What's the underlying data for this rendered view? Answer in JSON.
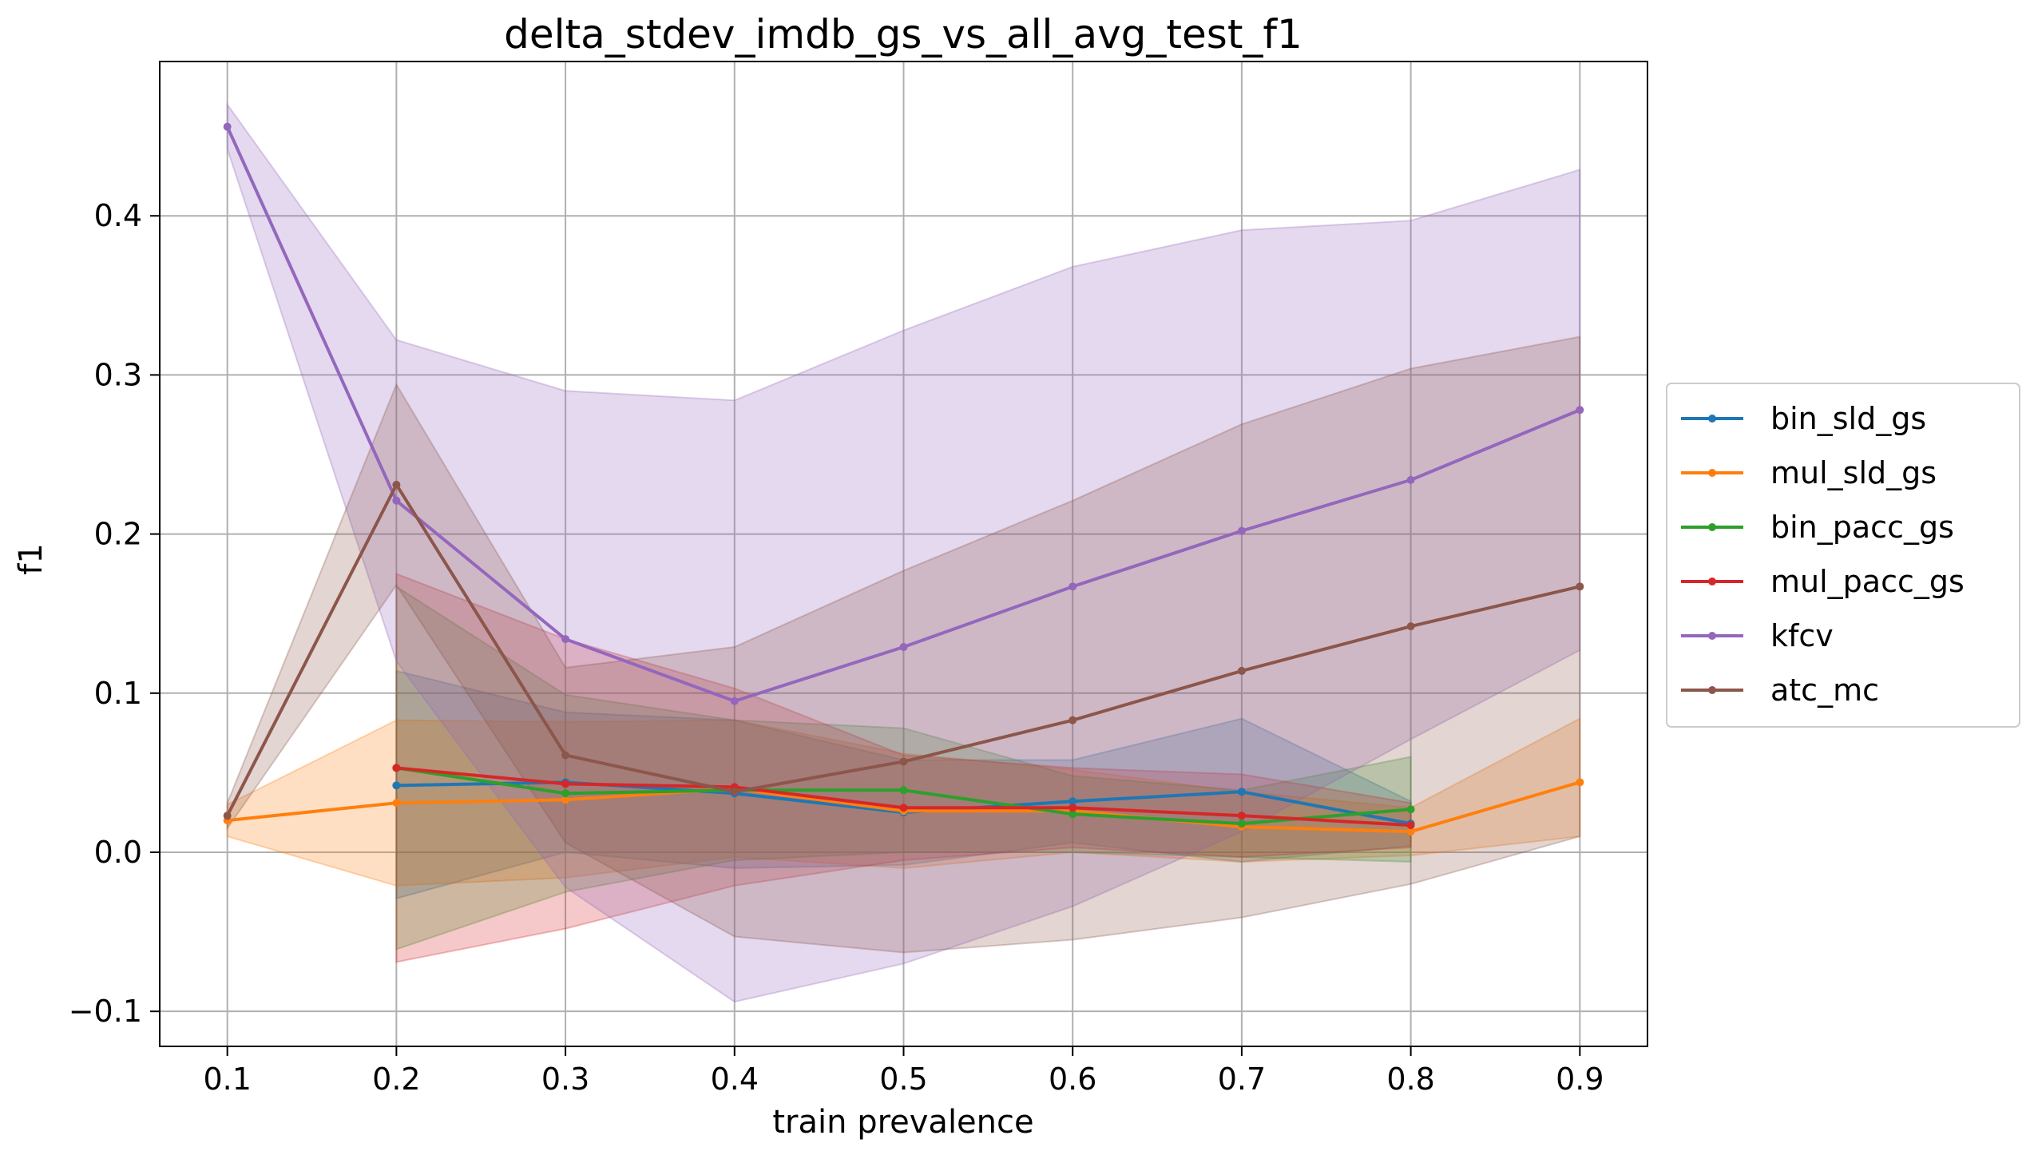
{
  "chart_data": {
    "type": "line",
    "title": "delta_stdev_imdb_gs_vs_all_avg_test_f1",
    "xlabel": "train prevalence",
    "ylabel": "f1",
    "xlim": [
      0.06,
      0.94
    ],
    "ylim": [
      -0.122,
      0.497
    ],
    "xticks": [
      0.1,
      0.2,
      0.3,
      0.4,
      0.5,
      0.6,
      0.7,
      0.8,
      0.9
    ],
    "xtick_labels": [
      "0.1",
      "0.2",
      "0.3",
      "0.4",
      "0.5",
      "0.6",
      "0.7",
      "0.8",
      "0.9"
    ],
    "yticks": [
      -0.1,
      0.0,
      0.1,
      0.2,
      0.3,
      0.4
    ],
    "ytick_labels": [
      "−0.1",
      "0.0",
      "0.1",
      "0.2",
      "0.3",
      "0.4"
    ],
    "grid": true,
    "legend_position": "outside-right",
    "series": [
      {
        "name": "bin_sld_gs",
        "color": "#1f77b4",
        "x": [
          0.2,
          0.3,
          0.4,
          0.5,
          0.6,
          0.7,
          0.8
        ],
        "y": [
          0.042,
          0.044,
          0.037,
          0.025,
          0.032,
          0.038,
          0.018
        ],
        "lower": [
          -0.029,
          0.0,
          -0.01,
          -0.008,
          0.006,
          -0.006,
          0.004
        ],
        "upper": [
          0.114,
          0.088,
          0.083,
          0.058,
          0.058,
          0.084,
          0.032
        ]
      },
      {
        "name": "mul_sld_gs",
        "color": "#ff7f0e",
        "x": [
          0.1,
          0.2,
          0.3,
          0.4,
          0.5,
          0.6,
          0.7,
          0.8,
          0.9
        ],
        "y": [
          0.02,
          0.031,
          0.033,
          0.04,
          0.026,
          0.026,
          0.016,
          0.013,
          0.044
        ],
        "lower": [
          0.01,
          -0.021,
          -0.016,
          -0.003,
          -0.01,
          0.0,
          -0.006,
          -0.002,
          0.01
        ],
        "upper": [
          0.03,
          0.083,
          0.082,
          0.083,
          0.062,
          0.052,
          0.038,
          0.028,
          0.084
        ]
      },
      {
        "name": "bin_pacc_gs",
        "color": "#2ca02c",
        "x": [
          0.2,
          0.3,
          0.4,
          0.5,
          0.6,
          0.7,
          0.8
        ],
        "y": [
          0.053,
          0.037,
          0.039,
          0.039,
          0.024,
          0.018,
          0.027
        ],
        "lower": [
          -0.061,
          -0.025,
          -0.005,
          0.0,
          0.0,
          -0.003,
          -0.006
        ],
        "upper": [
          0.167,
          0.099,
          0.083,
          0.078,
          0.048,
          0.039,
          0.06
        ]
      },
      {
        "name": "mul_pacc_gs",
        "color": "#d62728",
        "x": [
          0.2,
          0.3,
          0.4,
          0.5,
          0.6,
          0.7,
          0.8
        ],
        "y": [
          0.053,
          0.043,
          0.041,
          0.028,
          0.028,
          0.023,
          0.017
        ],
        "lower": [
          -0.069,
          -0.048,
          -0.021,
          -0.005,
          0.003,
          -0.003,
          0.003
        ],
        "upper": [
          0.175,
          0.134,
          0.103,
          0.061,
          0.053,
          0.049,
          0.031
        ]
      },
      {
        "name": "kfcv",
        "color": "#9467bd",
        "x": [
          0.1,
          0.2,
          0.3,
          0.4,
          0.5,
          0.6,
          0.7,
          0.8,
          0.9
        ],
        "y": [
          0.456,
          0.221,
          0.134,
          0.095,
          0.129,
          0.167,
          0.202,
          0.234,
          0.278
        ],
        "lower": [
          0.442,
          0.12,
          -0.022,
          -0.094,
          -0.07,
          -0.034,
          0.013,
          0.071,
          0.127
        ],
        "upper": [
          0.47,
          0.322,
          0.29,
          0.284,
          0.328,
          0.368,
          0.391,
          0.397,
          0.429
        ]
      },
      {
        "name": "atc_mc",
        "color": "#8c564b",
        "x": [
          0.1,
          0.2,
          0.3,
          0.4,
          0.5,
          0.6,
          0.7,
          0.8,
          0.9
        ],
        "y": [
          0.023,
          0.231,
          0.061,
          0.038,
          0.057,
          0.083,
          0.114,
          0.142,
          0.167
        ],
        "lower": [
          0.015,
          0.168,
          0.006,
          -0.053,
          -0.063,
          -0.055,
          -0.041,
          -0.02,
          0.01
        ],
        "upper": [
          0.031,
          0.294,
          0.116,
          0.129,
          0.177,
          0.221,
          0.269,
          0.304,
          0.324
        ]
      }
    ]
  }
}
